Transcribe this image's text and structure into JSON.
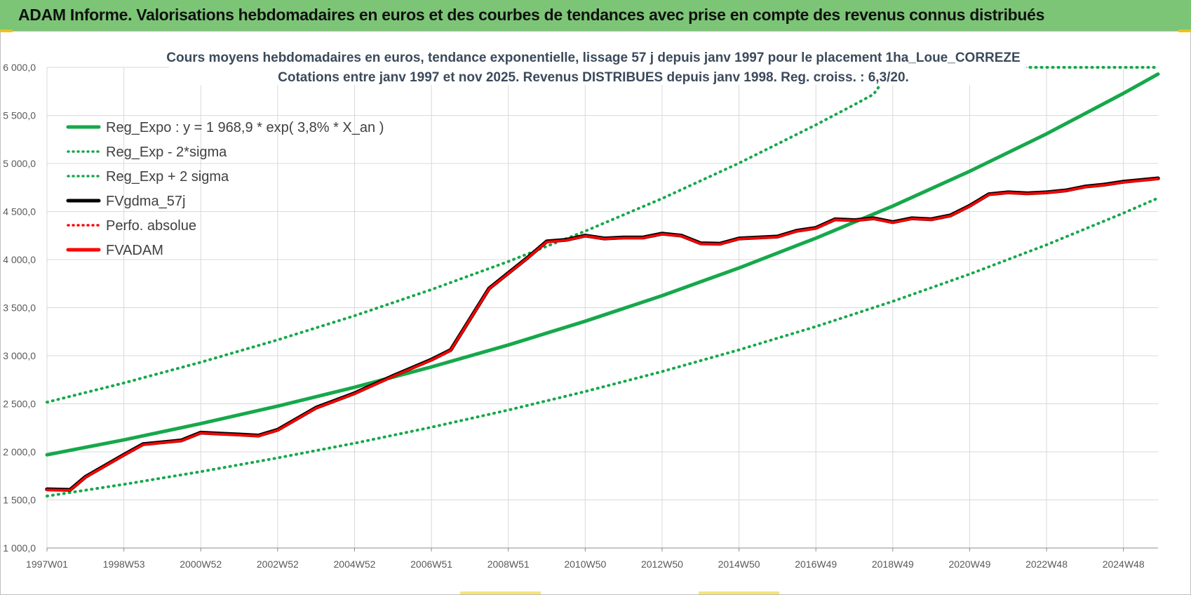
{
  "banner": {
    "title": "ADAM Informe. Valorisations hebdomadaires en euros et des courbes de tendances avec prise en compte des revenus connus distribués"
  },
  "colors": {
    "banner_bg": "#7cc576",
    "reg_green": "#16a84b",
    "fvadam_red": "#ff0000",
    "fvgdma_black": "#000000",
    "grid": "#d9d9d9"
  },
  "chart_data": {
    "type": "line",
    "title": "Cours moyens hebdomadaires en euros, tendance exponentielle, lissage 57 j depuis janv 1997  pour le  placement 1ha_Loue_CORREZE",
    "subtitle": "Cotations entre janv 1997 et nov 2025. Revenus DISTRIBUES depuis janv 1998. Reg. croiss. : 6,3/20.",
    "xlabel": "",
    "ylabel": "",
    "ylim": [
      1000,
      6000
    ],
    "xlim": [
      1997.0,
      2025.9
    ],
    "y_ticks": [
      1000,
      1500,
      2000,
      2500,
      3000,
      3500,
      4000,
      4500,
      5000,
      5500,
      6000
    ],
    "y_tick_labels": [
      "1 000,0",
      "1 500,0",
      "2 000,0",
      "2 500,0",
      "3 000,0",
      "3 500,0",
      "4 000,0",
      "4 500,0",
      "5 000,0",
      "5 500,0",
      "6 000,0"
    ],
    "x_tick_positions": [
      1997.0,
      1999.0,
      2001.0,
      2003.0,
      2005.0,
      2007.0,
      2009.0,
      2011.0,
      2013.0,
      2015.0,
      2017.0,
      2019.0,
      2021.0,
      2023.0,
      2025.0
    ],
    "x_tick_labels": [
      "1997W01",
      "1998W53",
      "2000W52",
      "2002W52",
      "2004W52",
      "2006W51",
      "2008W51",
      "2010W50",
      "2012W50",
      "2014W50",
      "2016W49",
      "2018W49",
      "2020W49",
      "2022W48",
      "2024W48"
    ],
    "grid": true,
    "legend_position": "top-left",
    "series": [
      {
        "name": "Reg_Expo : y = 1 968,9 * exp( 3,8% *  X_an )",
        "style": "solid",
        "color": "#16a84b",
        "x": [
          1997.0,
          1999.0,
          2001.0,
          2003.0,
          2005.0,
          2007.0,
          2009.0,
          2011.0,
          2013.0,
          2015.0,
          2017.0,
          2019.0,
          2021.0,
          2023.0,
          2025.0,
          2025.9
        ],
        "y": [
          1969,
          2125,
          2294,
          2476,
          2672,
          2884,
          3112,
          3359,
          3625,
          3913,
          4223,
          4557,
          4919,
          5309,
          5730,
          5930
        ]
      },
      {
        "name": "Reg_Exp - 2*sigma",
        "style": "dotted",
        "color": "#16a84b",
        "x": [
          1997.0,
          1999.0,
          2001.0,
          2003.0,
          2005.0,
          2007.0,
          2009.0,
          2011.0,
          2013.0,
          2015.0,
          2017.0,
          2019.0,
          2021.0,
          2023.0,
          2025.0,
          2025.9
        ],
        "y": [
          1540,
          1662,
          1794,
          1937,
          2090,
          2256,
          2435,
          2628,
          2836,
          3061,
          3304,
          3566,
          3849,
          4154,
          4484,
          4640
        ]
      },
      {
        "name": "Reg_Exp + 2 sigma",
        "style": "dotted",
        "color": "#16a84b",
        "x": [
          1997.0,
          1999.0,
          2001.0,
          2003.0,
          2005.0,
          2007.0,
          2009.0,
          2011.0,
          2013.0,
          2015.0,
          2017.0,
          2018.0,
          2018.5,
          2019.0,
          2025.9
        ],
        "y": [
          2517,
          2717,
          2932,
          3165,
          3416,
          3688,
          3980,
          4296,
          4636,
          5004,
          5402,
          5612,
          5720,
          6000,
          6000
        ]
      },
      {
        "name": "FVgdma_57j",
        "style": "solid",
        "color": "#000000",
        "x": [
          1997.0,
          1997.6,
          1998.0,
          1999.0,
          1999.5,
          2000.0,
          2000.5,
          2001.0,
          2001.5,
          2002.0,
          2002.5,
          2003.0,
          2004.0,
          2005.0,
          2006.0,
          2007.0,
          2007.5,
          2008.0,
          2008.5,
          2009.0,
          2009.5,
          2010.0,
          2010.5,
          2011.0,
          2011.5,
          2012.0,
          2012.5,
          2013.0,
          2013.5,
          2014.0,
          2014.5,
          2015.0,
          2016.0,
          2016.5,
          2017.0,
          2017.5,
          2018.0,
          2018.5,
          2019.0,
          2019.5,
          2020.0,
          2020.5,
          2021.0,
          2021.5,
          2022.0,
          2022.5,
          2023.0,
          2023.5,
          2024.0,
          2024.5,
          2025.0,
          2025.9
        ],
        "y": [
          1610,
          1605,
          1740,
          1970,
          2080,
          2100,
          2120,
          2200,
          2190,
          2180,
          2170,
          2230,
          2460,
          2610,
          2790,
          2960,
          3060,
          3380,
          3700,
          3860,
          4020,
          4190,
          4205,
          4250,
          4220,
          4230,
          4230,
          4270,
          4250,
          4170,
          4165,
          4220,
          4240,
          4300,
          4330,
          4420,
          4410,
          4430,
          4390,
          4430,
          4420,
          4460,
          4560,
          4680,
          4700,
          4690,
          4700,
          4720,
          4760,
          4780,
          4810,
          4845
        ]
      },
      {
        "name": "Perfo. absolue",
        "style": "dotted",
        "color": "#ff0000",
        "x": [],
        "y": []
      },
      {
        "name": "FVADAM",
        "style": "solid",
        "color": "#ff0000",
        "x": [
          1997.0,
          1997.6,
          1998.0,
          1999.0,
          1999.5,
          2000.0,
          2000.5,
          2001.0,
          2001.5,
          2002.0,
          2002.5,
          2003.0,
          2004.0,
          2005.0,
          2006.0,
          2007.0,
          2007.5,
          2008.0,
          2008.5,
          2009.0,
          2009.5,
          2010.0,
          2010.5,
          2011.0,
          2011.5,
          2012.0,
          2012.5,
          2013.0,
          2013.5,
          2014.0,
          2014.5,
          2015.0,
          2016.0,
          2016.5,
          2017.0,
          2017.5,
          2018.0,
          2018.5,
          2019.0,
          2019.5,
          2020.0,
          2020.5,
          2021.0,
          2021.5,
          2022.0,
          2022.5,
          2023.0,
          2023.5,
          2024.0,
          2024.5,
          2025.0,
          2025.9
        ],
        "y": [
          1605,
          1600,
          1735,
          1965,
          2075,
          2095,
          2115,
          2195,
          2185,
          2175,
          2165,
          2225,
          2455,
          2605,
          2785,
          2955,
          3055,
          3375,
          3695,
          3855,
          4015,
          4185,
          4200,
          4245,
          4215,
          4225,
          4225,
          4265,
          4245,
          4165,
          4160,
          4215,
          4235,
          4295,
          4325,
          4415,
          4405,
          4425,
          4385,
          4425,
          4415,
          4455,
          4555,
          4675,
          4695,
          4685,
          4695,
          4715,
          4755,
          4775,
          4805,
          4840
        ]
      }
    ]
  }
}
